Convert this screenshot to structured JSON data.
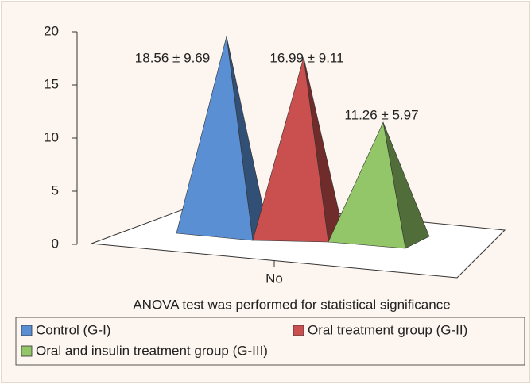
{
  "chart_data": {
    "type": "pyramid",
    "categories": [
      "No"
    ],
    "series": [
      {
        "name": "Control (G-I)",
        "color": "#5b8fd4",
        "values": [
          18.56
        ],
        "value_labels": [
          "18.56 ± 9.69"
        ]
      },
      {
        "name": "Oral treatment group (G-II)",
        "color": "#c9504f",
        "values": [
          16.99
        ],
        "value_labels": [
          "16.99 ± 9.11"
        ]
      },
      {
        "name": "Oral and insulin treatment group (G-III)",
        "color": "#93c668",
        "values": [
          11.26
        ],
        "value_labels": [
          "11.26 ± 5.97"
        ]
      }
    ],
    "annotation": "ANOVA test was performed for statistical significance",
    "ylim": [
      0,
      20
    ],
    "yticks": [
      0,
      5,
      10,
      15,
      20
    ]
  }
}
